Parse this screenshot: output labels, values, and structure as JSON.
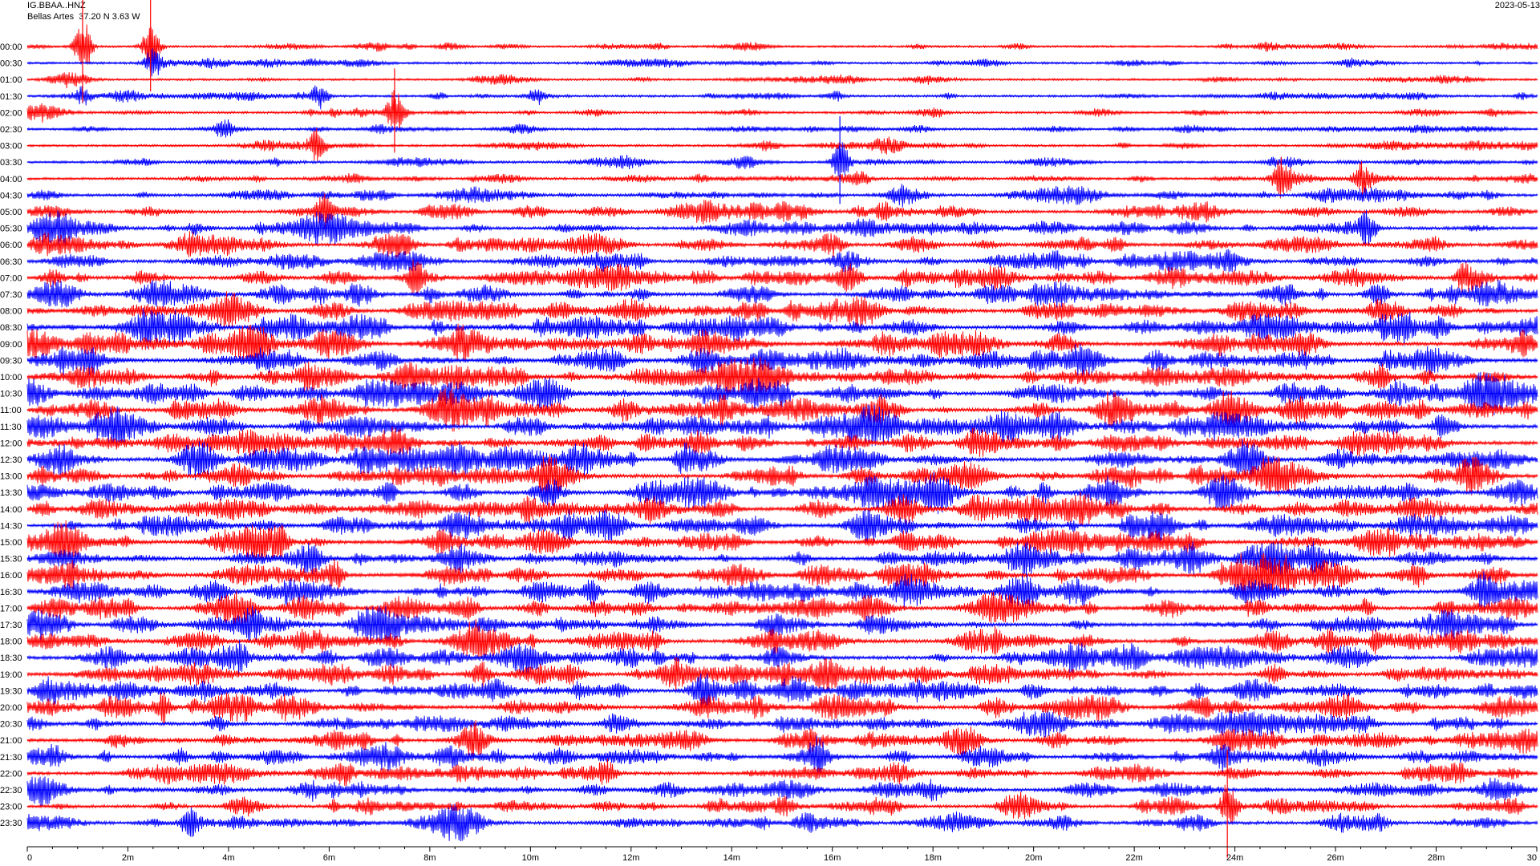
{
  "header": {
    "station_code": "IG.BBAA..HNZ",
    "station_info": "Bellas Artes  37.20 N 3.63 W",
    "date": "2023-05-13"
  },
  "chart_data": {
    "type": "line",
    "description_type": "helicorder",
    "y_labels": [
      "00:00",
      "00:30",
      "01:00",
      "01:30",
      "02:00",
      "02:30",
      "03:00",
      "03:30",
      "04:00",
      "04:30",
      "05:00",
      "05:30",
      "06:00",
      "06:30",
      "07:00",
      "07:30",
      "08:00",
      "08:30",
      "09:00",
      "09:30",
      "10:00",
      "10:30",
      "11:00",
      "11:30",
      "12:00",
      "12:30",
      "13:00",
      "13:30",
      "14:00",
      "14:30",
      "15:00",
      "15:30",
      "16:00",
      "16:30",
      "17:00",
      "17:30",
      "18:00",
      "18:30",
      "19:00",
      "19:30",
      "20:00",
      "20:30",
      "21:00",
      "21:30",
      "22:00",
      "22:30",
      "23:00",
      "23:30"
    ],
    "x_ticks": [
      "0",
      "2m",
      "4m",
      "6m",
      "8m",
      "10m",
      "12m",
      "14m",
      "16m",
      "18m",
      "20m",
      "22m",
      "24m",
      "26m",
      "28m",
      "30"
    ],
    "xlim": [
      0,
      30
    ],
    "trace_colors": [
      "#ff0000",
      "#0000ff"
    ],
    "grid": false,
    "trace_activity": [
      0.25,
      0.28,
      0.22,
      0.3,
      0.3,
      0.3,
      0.32,
      0.35,
      0.4,
      0.55,
      0.62,
      0.68,
      0.72,
      0.78,
      0.82,
      0.85,
      0.88,
      0.92,
      0.95,
      0.95,
      0.95,
      0.97,
      0.98,
      0.98,
      0.97,
      0.95,
      0.95,
      0.95,
      0.92,
      0.92,
      0.92,
      0.9,
      0.92,
      0.92,
      0.9,
      0.88,
      0.88,
      0.88,
      0.88,
      0.85,
      0.85,
      0.82,
      0.8,
      0.78,
      0.75,
      0.72,
      0.7,
      0.68
    ],
    "events": [
      {
        "row": 0,
        "minute": 1.1,
        "amp": 3.5
      },
      {
        "row": 0,
        "minute": 2.45,
        "amp": 2.8
      },
      {
        "row": 1,
        "minute": 2.5,
        "amp": 1.6
      },
      {
        "row": 3,
        "minute": 1.1,
        "amp": 1.2
      },
      {
        "row": 3,
        "minute": 10.1,
        "amp": 1.0
      },
      {
        "row": 3,
        "minute": 5.8,
        "amp": 1.5
      },
      {
        "row": 4,
        "minute": 7.3,
        "amp": 2.5
      },
      {
        "row": 5,
        "minute": 3.9,
        "amp": 1.2
      },
      {
        "row": 6,
        "minute": 5.75,
        "amp": 1.8
      },
      {
        "row": 7,
        "minute": 16.15,
        "amp": 2.6
      },
      {
        "row": 8,
        "minute": 24.9,
        "amp": 2.2
      },
      {
        "row": 8,
        "minute": 26.5,
        "amp": 2.0
      },
      {
        "row": 10,
        "minute": 5.9,
        "amp": 2.2
      },
      {
        "row": 11,
        "minute": 26.6,
        "amp": 1.8
      },
      {
        "row": 14,
        "minute": 7.7,
        "amp": 1.8
      },
      {
        "row": 14,
        "minute": 28.5,
        "amp": 1.5
      },
      {
        "row": 16,
        "minute": 15.2,
        "amp": 1.2
      },
      {
        "row": 18,
        "minute": 8.6,
        "amp": 1.4
      },
      {
        "row": 22,
        "minute": 9.2,
        "amp": 1.4
      },
      {
        "row": 22,
        "minute": 13.8,
        "amp": 1.2
      },
      {
        "row": 25,
        "minute": 13.0,
        "amp": 1.0
      },
      {
        "row": 27,
        "minute": 10.4,
        "amp": 1.0
      },
      {
        "row": 30,
        "minute": 5.0,
        "amp": 1.8
      },
      {
        "row": 32,
        "minute": 6.1,
        "amp": 1.6
      },
      {
        "row": 33,
        "minute": 11.2,
        "amp": 1.6
      },
      {
        "row": 35,
        "minute": 6.8,
        "amp": 1.2
      },
      {
        "row": 37,
        "minute": 4.2,
        "amp": 1.4
      },
      {
        "row": 40,
        "minute": 2.7,
        "amp": 1.8
      },
      {
        "row": 43,
        "minute": 15.7,
        "amp": 2.2
      },
      {
        "row": 43,
        "minute": 23.7,
        "amp": 1.4
      },
      {
        "row": 44,
        "minute": 11.5,
        "amp": 1.5
      },
      {
        "row": 46,
        "minute": 23.85,
        "amp": 3.2
      },
      {
        "row": 47,
        "minute": 3.2,
        "amp": 1.6
      }
    ]
  }
}
